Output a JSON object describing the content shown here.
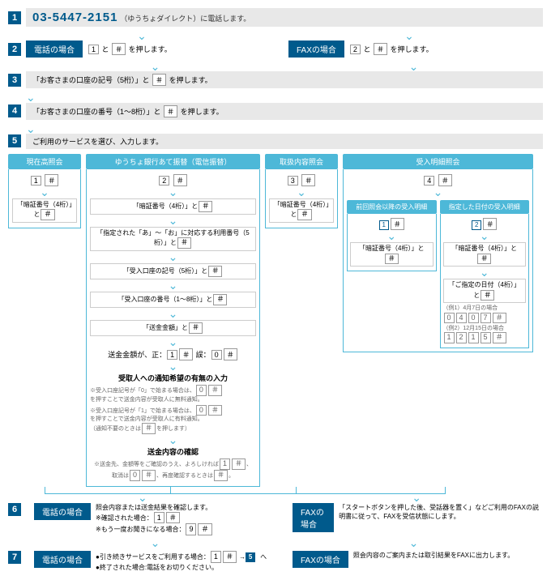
{
  "colors": {
    "primary": "#005a8c",
    "accent": "#4db8d8",
    "bar": "#e8e8e8"
  },
  "step1": {
    "num": "1",
    "phone": "03-5447-2151",
    "note": "（ゆうちょダイレクト）に電話します。"
  },
  "step2": {
    "num": "2",
    "phone_label": "電話の場合",
    "phone_instr_a": "と",
    "phone_key1": "1",
    "phone_key2": "＃",
    "phone_instr_b": "を押します。",
    "fax_label": "FAXの場合",
    "fax_key1": "2",
    "fax_key2": "＃",
    "fax_instr_a": "と",
    "fax_instr_b": "を押します。"
  },
  "step3": {
    "num": "3",
    "text_a": "「お客さまの口座の記号（5桁）」と",
    "key": "＃",
    "text_b": "を押します。"
  },
  "step4": {
    "num": "4",
    "text_a": "「お客さまの口座の番号（1〜8桁）」と",
    "key": "＃",
    "text_b": "を押します。"
  },
  "step5": {
    "num": "5",
    "text": "ご利用のサービスを選び、入力します。"
  },
  "branches": {
    "balance": {
      "title": "現在高照会",
      "step_key": "1",
      "step_hash": "＃",
      "body": "「暗証番号（4桁）」と",
      "body_key": "＃"
    },
    "transfer": {
      "title": "ゆうちょ銀行あて振替（電信振替）",
      "step_key": "2",
      "step_hash": "＃",
      "r1": "「暗証番号（4桁）」と",
      "r1k": "＃",
      "r2": "「指定された「あ」〜「お」に対応する利用番号（5桁）」と",
      "r2k": "＃",
      "r3": "「受入口座の記号（5桁）」と",
      "r3k": "＃",
      "r4": "「受入口座の番号（1〜8桁）」と",
      "r4k": "＃",
      "r5": "「送金金額」と",
      "r5k": "＃",
      "r6_label": "送金金額が、正：",
      "r6_k1": "1",
      "r6_h1": "＃",
      "r6_mid": "誤：",
      "r6_k0": "0",
      "r6_h0": "＃",
      "r7": "受取人への通知希望の有無の入力",
      "note1": "※受入口座記号が「0」で始まる場合は、",
      "note1k": "0",
      "note1h": "＃",
      "note1b": "を押すことで送金内容が受取人に無料通知。",
      "note2": "※受入口座記号が「1」で始まる場合は、",
      "note2k": "0",
      "note2h": "＃",
      "note2b": "を押すことで送金内容が受取人に有料通知。",
      "note2c": "（通知不要のときは",
      "note2ck": "＃",
      "note2d": "を押します）",
      "r8": "送金内容の確認",
      "note3a": "※送金先、金額等をご確認のうえ、よろしければ",
      "note3k": "1",
      "note3h": "＃",
      "note3b": "、",
      "note4a": "取消は",
      "note4k": "0",
      "note4h": "＃",
      "note4b": "、再度確認するときは",
      "note4k2": "＃",
      "note4c": "。"
    },
    "history": {
      "title": "取扱内容照会",
      "step_key": "3",
      "step_hash": "＃",
      "body": "「暗証番号（4桁）」と",
      "body_key": "＃"
    },
    "receipt": {
      "title": "受入明細照会",
      "step_key": "4",
      "step_hash": "＃",
      "sub1": {
        "title": "前回照会以降の受入明細",
        "key": "1",
        "hash": "＃",
        "body": "「暗証番号（4桁）」と",
        "body_key": "＃"
      },
      "sub2": {
        "title": "指定した日付の受入明細",
        "key": "2",
        "hash": "＃",
        "r1": "「暗証番号（4桁）」と",
        "r1k": "＃",
        "r2": "「ご指定の日付（4桁）」と",
        "r2k": "＃",
        "ex1_label": "（例1）4月7日の場合",
        "ex1_keys": [
          "0",
          "4",
          "0",
          "7",
          "＃"
        ],
        "ex2_label": "（例2）12月15日の場合",
        "ex2_keys": [
          "1",
          "2",
          "1",
          "5",
          "＃"
        ]
      }
    }
  },
  "step6": {
    "num": "6",
    "phone_label": "電話の場合",
    "phone_l1": "照会内容または送金結果を確認します。",
    "phone_l2": "※確認された場合：",
    "phone_l2k": "1",
    "phone_l2h": "＃",
    "phone_l3": "※もう一度お聞きになる場合：",
    "phone_l3k": "9",
    "phone_l3h": "＃",
    "fax_label": "FAXの場合",
    "fax_text": "「スタートボタンを押した後、受話器を置く」などご利用のFAXの説明書に従って、FAXを受信状態にします。"
  },
  "step7": {
    "num": "7",
    "phone_label": "電話の場合",
    "phone_l1a": "●引き続きサービスをご利用する場合：",
    "phone_l1k": "1",
    "phone_l1h": "＃",
    "phone_l1b": "→",
    "phone_l1c": "へ",
    "phone_l1step": "5",
    "phone_l2": "●終了された場合:電話をお切りください。",
    "fax_label": "FAXの場合",
    "fax_text": "照会内容のご案内または取引結果をFAXに出力します。"
  }
}
